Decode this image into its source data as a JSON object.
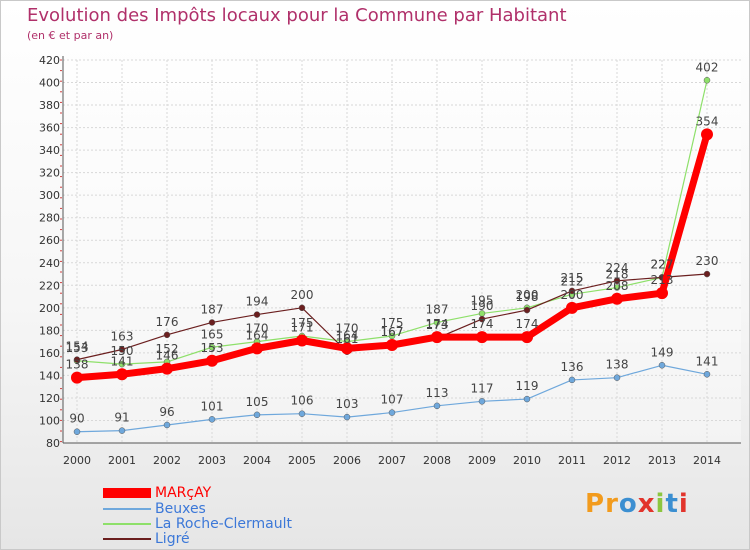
{
  "chart_data": {
    "type": "line",
    "title": "Evolution des Impôts locaux pour la Commune par Habitant",
    "subtitle": "(en € et par an)",
    "x": [
      "2000",
      "2001",
      "2002",
      "2003",
      "2004",
      "2005",
      "2006",
      "2007",
      "2008",
      "2009",
      "2010",
      "2011",
      "2012",
      "2013",
      "2014"
    ],
    "ylim": [
      80,
      420
    ],
    "yticks": [
      80,
      100,
      120,
      140,
      160,
      180,
      200,
      220,
      240,
      260,
      280,
      300,
      320,
      340,
      360,
      380,
      400,
      420
    ],
    "grid": true,
    "legend_position": "bottom-left",
    "series": [
      {
        "name": "MARçAY",
        "color": "#ff0000",
        "values": [
          138,
          141,
          146,
          153,
          164,
          171,
          164,
          167,
          174,
          174,
          174,
          200,
          208,
          213,
          354
        ]
      },
      {
        "name": "Beuxes",
        "color": "#6fa8dc",
        "values": [
          90,
          91,
          96,
          101,
          105,
          106,
          103,
          107,
          113,
          117,
          119,
          136,
          138,
          149,
          141
        ]
      },
      {
        "name": "La Roche-Clermault",
        "color": "#8ee06a",
        "values": [
          153,
          150,
          152,
          165,
          170,
          175,
          170,
          175,
          187,
          195,
          200,
          212,
          218,
          227,
          402
        ]
      },
      {
        "name": "Ligré",
        "color": "#6b1f1f",
        "values": [
          154,
          163,
          176,
          187,
          194,
          200,
          161,
          167,
          173,
          190,
          198,
          215,
          224,
          227,
          230
        ]
      }
    ]
  },
  "brand": {
    "text": "Proxiti"
  }
}
